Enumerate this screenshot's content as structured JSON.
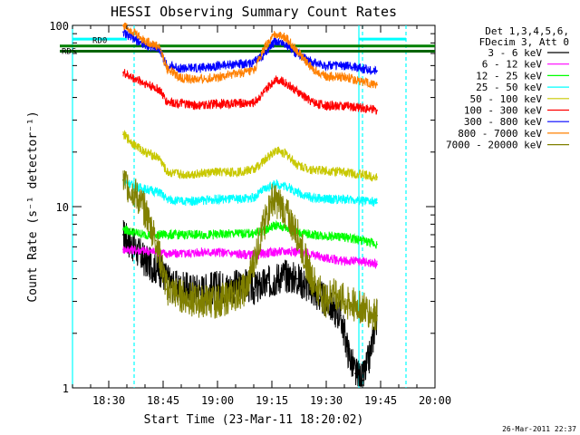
{
  "chart_data": {
    "type": "line",
    "title": "HESSI Observing Summary Count Rates",
    "xlabel": "Start Time (23-Mar-11 18:20:02)",
    "ylabel": "Count Rate (s⁻¹ detector⁻¹)",
    "y_scale": "log",
    "ylim": [
      1,
      100
    ],
    "xlim": [
      "18:20",
      "20:00"
    ],
    "x_ticks": [
      "18:30",
      "18:45",
      "19:00",
      "19:15",
      "19:30",
      "19:45",
      "20:00"
    ],
    "y_ticks": [
      "1",
      "10",
      "100"
    ],
    "legend_header": [
      "Det 1,3,4,5,6,",
      "FDecim 3, Att 0"
    ],
    "legend_position": "right",
    "timestamp": "26-Mar-2011 22:37",
    "markers": {
      "rd0_label": "RD0",
      "rd0_value": 77,
      "rd0_color": "#008000",
      "rds_label": "RDS",
      "rds_value": 72,
      "rds_color": "#006400",
      "cyan_bars": [
        {
          "x": [
            "18:20",
            "18:35"
          ],
          "value": 84
        },
        {
          "x": [
            "19:39",
            "19:52"
          ],
          "value": 84
        }
      ],
      "vlines": [
        "18:20",
        "19:39"
      ],
      "dashed_vlines": [
        "18:37",
        "19:40",
        "19:52"
      ]
    },
    "series": [
      {
        "name": "3 - 6 keV",
        "color": "#000000",
        "x": [
          "18:34",
          "18:37",
          "18:40",
          "18:44",
          "18:46",
          "18:48",
          "18:52",
          "18:56",
          "19:00",
          "19:04",
          "19:08",
          "19:10",
          "19:14",
          "19:18",
          "19:22",
          "19:26",
          "19:28",
          "19:30",
          "19:34",
          "19:36",
          "19:38",
          "19:40",
          "19:42",
          "19:44"
        ],
        "values": [
          7,
          6,
          5,
          4.5,
          4,
          3.6,
          3.5,
          3.5,
          3.6,
          3.6,
          3.7,
          3.5,
          3.8,
          4.2,
          4,
          3.5,
          3.2,
          3,
          2.5,
          1.6,
          1.2,
          1.1,
          1.5,
          2.5
        ]
      },
      {
        "name": "6 - 12 keV",
        "color": "#ff00ff",
        "x": [
          "18:34",
          "18:36",
          "18:40",
          "18:44",
          "18:46",
          "18:50",
          "18:55",
          "19:00",
          "19:05",
          "19:10",
          "19:15",
          "19:20",
          "19:25",
          "19:30",
          "19:35",
          "19:40",
          "19:44"
        ],
        "values": [
          5.8,
          5.8,
          5.7,
          5.6,
          5.5,
          5.5,
          5.6,
          5.6,
          5.5,
          5.4,
          5.6,
          5.7,
          5.5,
          5.2,
          5,
          5,
          4.8
        ]
      },
      {
        "name": "12 - 25 keV",
        "color": "#00ff00",
        "x": [
          "18:34",
          "18:37",
          "18:40",
          "18:44",
          "18:46",
          "18:50",
          "18:55",
          "19:00",
          "19:05",
          "19:10",
          "19:13",
          "19:16",
          "19:19",
          "19:22",
          "19:26",
          "19:30",
          "19:35",
          "19:40",
          "19:44"
        ],
        "values": [
          7.5,
          7.2,
          7,
          7,
          7,
          7,
          7,
          7,
          7.1,
          7.1,
          7.4,
          7.9,
          7.6,
          7.2,
          7,
          6.9,
          6.8,
          6.5,
          6.2
        ]
      },
      {
        "name": "25 - 50 keV",
        "color": "#00ffff",
        "x": [
          "18:34",
          "18:37",
          "18:40",
          "18:44",
          "18:46",
          "18:50",
          "18:55",
          "19:00",
          "19:05",
          "19:10",
          "19:13",
          "19:16",
          "19:19",
          "19:22",
          "19:26",
          "19:30",
          "19:35",
          "19:40",
          "19:44"
        ],
        "values": [
          14,
          13,
          12.5,
          12,
          11,
          10.7,
          10.8,
          11,
          11,
          11.2,
          12.5,
          13.3,
          13,
          12,
          11.2,
          11,
          11,
          10.8,
          10.5
        ]
      },
      {
        "name": "50 - 100 keV",
        "color": "#c8c800",
        "x": [
          "18:34",
          "18:37",
          "18:40",
          "18:44",
          "18:46",
          "18:50",
          "18:55",
          "19:00",
          "19:05",
          "19:10",
          "19:13",
          "19:16",
          "19:19",
          "19:22",
          "19:26",
          "19:30",
          "19:35",
          "19:40",
          "19:44"
        ],
        "values": [
          25,
          22,
          20,
          18.5,
          15.5,
          15,
          15.2,
          15.5,
          15.5,
          16,
          18,
          20.5,
          19.5,
          17,
          16,
          15.8,
          15.5,
          15,
          14.5
        ]
      },
      {
        "name": "100 - 300 keV",
        "color": "#ff0000",
        "x": [
          "18:34",
          "18:36",
          "18:40",
          "18:44",
          "18:46",
          "18:50",
          "18:55",
          "19:00",
          "19:05",
          "19:10",
          "19:13",
          "19:16",
          "19:19",
          "19:22",
          "19:26",
          "19:30",
          "19:35",
          "19:40",
          "19:44"
        ],
        "values": [
          55,
          52,
          48,
          44,
          38,
          37,
          36,
          37,
          37,
          37.5,
          43,
          51,
          48,
          43,
          38,
          36,
          36,
          35,
          34
        ]
      },
      {
        "name": "300 - 800 keV",
        "color": "#0000ff",
        "x": [
          "18:34",
          "18:36",
          "18:40",
          "18:44",
          "18:46",
          "18:50",
          "18:55",
          "19:00",
          "19:05",
          "19:10",
          "19:13",
          "19:16",
          "19:19",
          "19:22",
          "19:26",
          "19:30",
          "19:35",
          "19:40",
          "19:44"
        ],
        "values": [
          92,
          86,
          78,
          74,
          60,
          58,
          58,
          60,
          61,
          62,
          70,
          82,
          78,
          70,
          63,
          60,
          60,
          58,
          56
        ]
      },
      {
        "name": "800 - 7000 keV",
        "color": "#ff8000",
        "x": [
          "18:34",
          "18:36",
          "18:40",
          "18:44",
          "18:46",
          "18:50",
          "18:55",
          "19:00",
          "19:05",
          "19:10",
          "19:13",
          "19:16",
          "19:19",
          "19:22",
          "19:26",
          "19:30",
          "19:35",
          "19:40",
          "19:44"
        ],
        "values": [
          100,
          95,
          82,
          76,
          58,
          51,
          50,
          52,
          54,
          56,
          75,
          90,
          85,
          72,
          58,
          52,
          52,
          49,
          47
        ]
      },
      {
        "name": "7000 - 20000 keV",
        "color": "#808000",
        "x": [
          "18:34",
          "18:37",
          "18:40",
          "18:43",
          "18:46",
          "18:50",
          "18:55",
          "19:00",
          "19:04",
          "19:08",
          "19:12",
          "19:15",
          "19:18",
          "19:22",
          "19:26",
          "19:30",
          "19:32",
          "19:35",
          "19:40",
          "19:44"
        ],
        "values": [
          14,
          12,
          9.5,
          6.5,
          3.5,
          3.2,
          3,
          3,
          3.2,
          3.5,
          7,
          11,
          10,
          7,
          4,
          3,
          3.5,
          3,
          2.8,
          2.5
        ]
      }
    ]
  }
}
